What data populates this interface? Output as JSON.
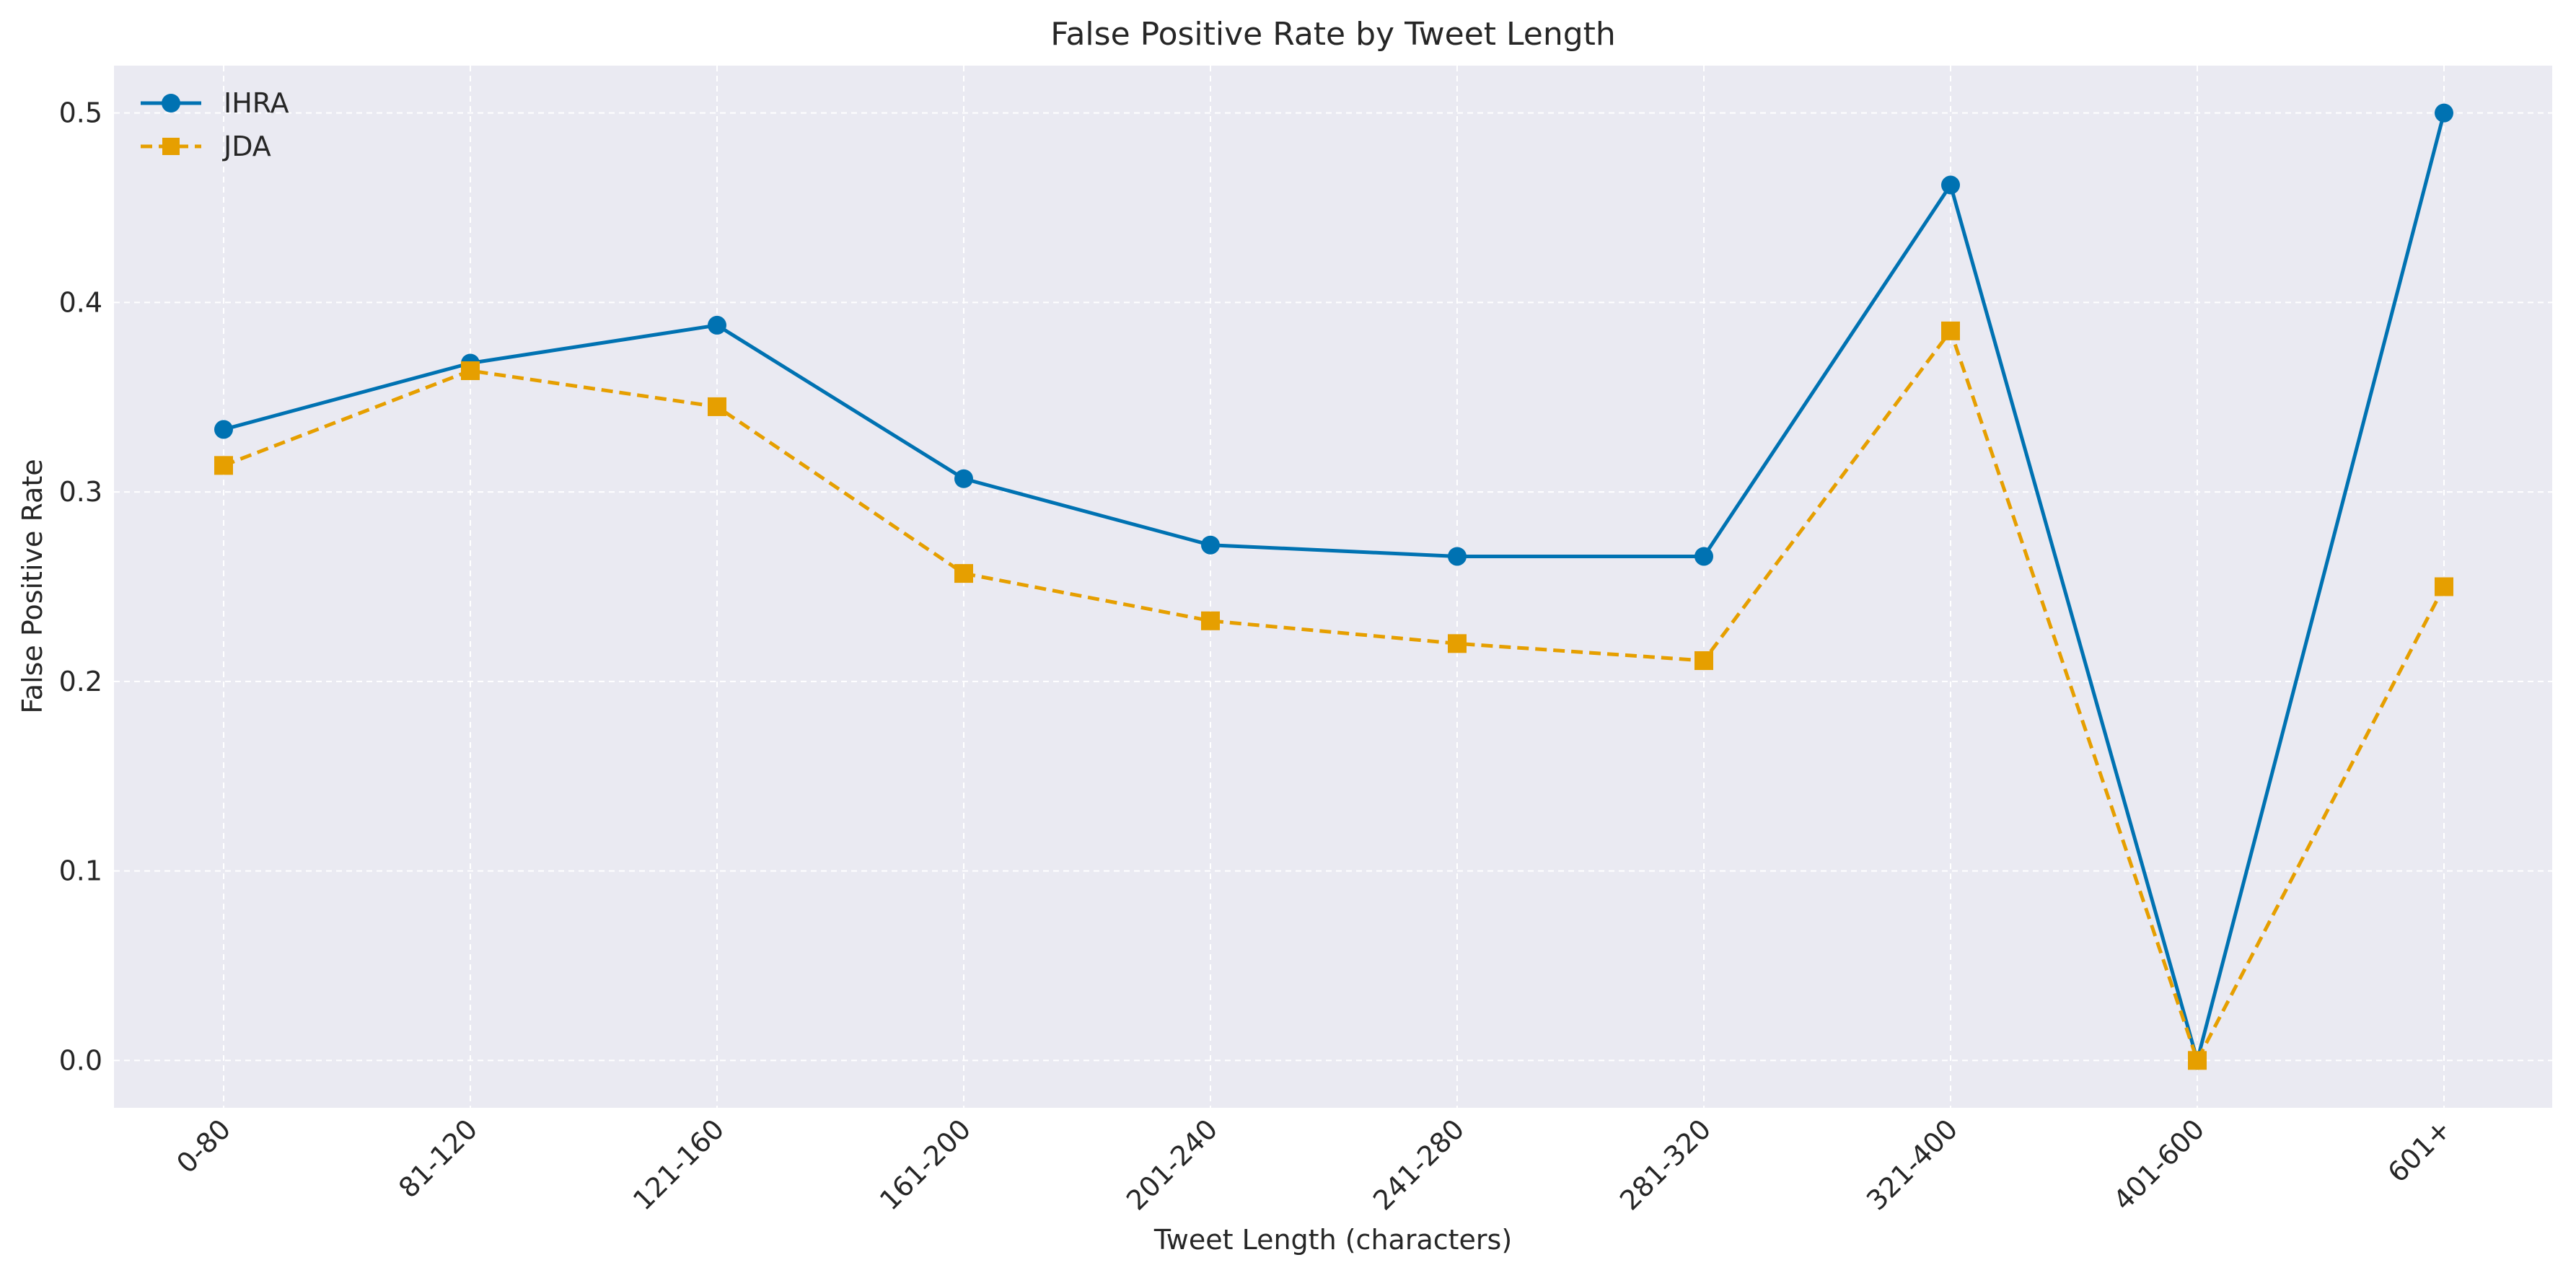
{
  "chart_data": {
    "type": "line",
    "title": "False Positive Rate by Tweet Length",
    "xlabel": "Tweet Length (characters)",
    "ylabel": "False Positive Rate",
    "categories": [
      "0-80",
      "81-120",
      "121-160",
      "161-200",
      "201-240",
      "241-280",
      "281-320",
      "321-400",
      "401-600",
      "601+"
    ],
    "yticks": [
      "0.0",
      "0.1",
      "0.2",
      "0.3",
      "0.4",
      "0.5"
    ],
    "ylim": [
      -0.025,
      0.525
    ],
    "grid": true,
    "legend_position": "top-left",
    "series": [
      {
        "name": "IHRA",
        "color": "#0072b2",
        "marker": "circle",
        "line_style": "solid",
        "values": [
          0.333,
          0.368,
          0.388,
          0.307,
          0.272,
          0.266,
          0.266,
          0.462,
          0.0,
          0.5
        ]
      },
      {
        "name": "JDA",
        "color": "#e69f00",
        "marker": "square",
        "line_style": "dashed",
        "values": [
          0.314,
          0.364,
          0.345,
          0.257,
          0.232,
          0.22,
          0.211,
          0.385,
          0.0,
          0.25
        ]
      }
    ]
  }
}
